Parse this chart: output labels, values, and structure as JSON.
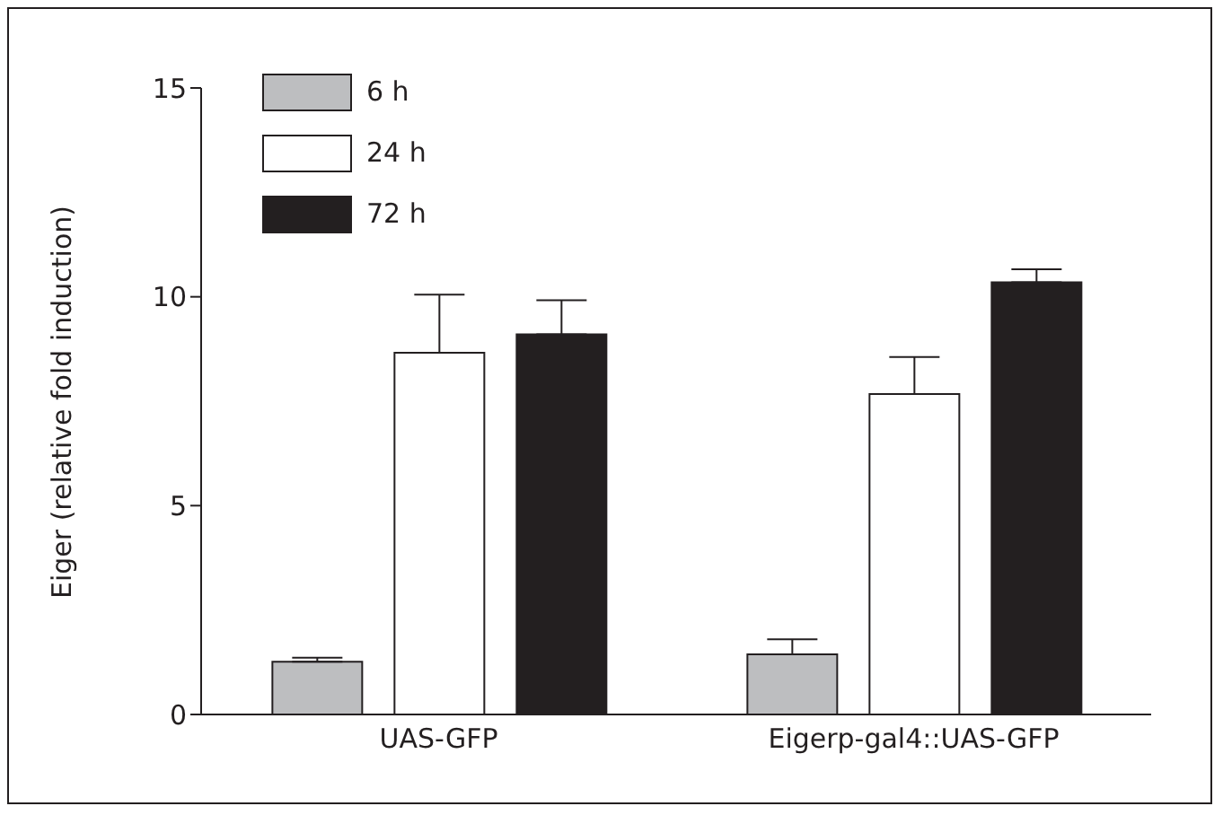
{
  "chart_data": {
    "type": "bar",
    "ylabel": "Eiger (relative fold induction)",
    "categories": [
      "UAS-GFP",
      "Eigerp-gal4::UAS-GFP"
    ],
    "series": [
      {
        "name": "6 h",
        "color": "#bdbec0",
        "values": [
          1.26,
          1.44
        ],
        "errors": [
          [
            1.26,
            1.36
          ],
          [
            1.44,
            1.8
          ]
        ]
      },
      {
        "name": "24 h",
        "color": "#ffffff",
        "values": [
          8.66,
          7.67
        ],
        "errors": [
          [
            8.66,
            10.05
          ],
          [
            7.67,
            8.56
          ]
        ]
      },
      {
        "name": "72 h",
        "color": "#231f20",
        "values": [
          9.1,
          10.35
        ],
        "errors": [
          [
            9.1,
            9.92
          ],
          [
            10.35,
            10.66
          ]
        ]
      }
    ],
    "ylim": [
      0,
      15
    ],
    "yticks": [
      0,
      5,
      10,
      15
    ],
    "legend": "top left"
  }
}
